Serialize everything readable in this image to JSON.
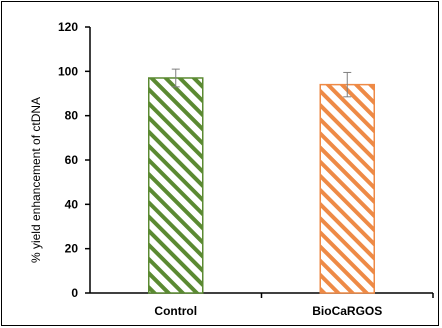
{
  "chart_data": {
    "type": "bar",
    "title": "",
    "xlabel": "",
    "ylabel": "% yield enhancement of ctDNA",
    "categories": [
      "Control",
      "BioCaRGOS"
    ],
    "values": [
      97,
      94
    ],
    "errors": [
      4,
      5.5
    ],
    "colors": [
      "#5b8a32",
      "#ee8a46"
    ],
    "pattern": "diagonal-stripes",
    "ylim": [
      0,
      120
    ],
    "yticks": [
      0,
      20,
      40,
      60,
      80,
      100,
      120
    ],
    "grid": false,
    "legend": "none"
  }
}
